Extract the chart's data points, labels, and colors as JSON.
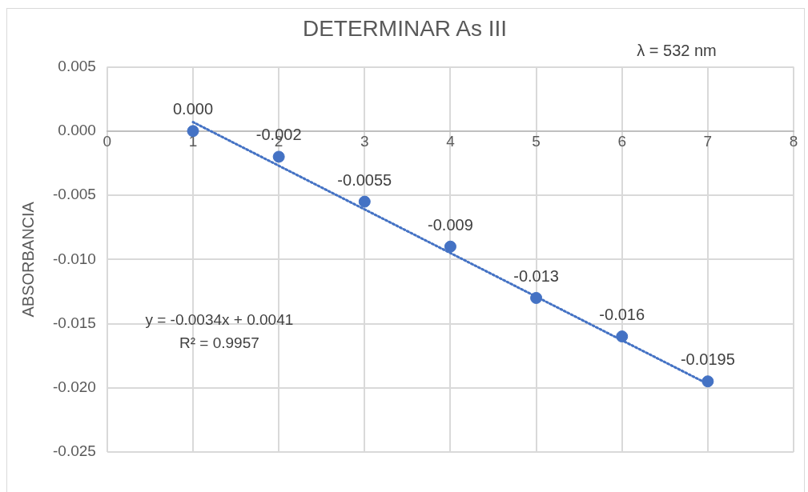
{
  "chart_data": {
    "type": "scatter",
    "title": "DETERMINAR As III",
    "ylabel": "ABSORBANCIA",
    "annotations": [
      "λ = 532 nm",
      "y = -0.0034x + 0.0041",
      "R² = 0.9957"
    ],
    "x": [
      1,
      2,
      3,
      4,
      5,
      6,
      7
    ],
    "series": [
      {
        "type": "scatter",
        "color": "#4472c4",
        "marker": "circle",
        "values": [
          0,
          -0.002,
          -0.0055,
          -0.009,
          -0.013,
          -0.016,
          -0.0195
        ],
        "value_labels": [
          "0.000",
          "-0.002",
          "-0.0055",
          "-0.009",
          "-0.013",
          "-0.016",
          "-0.0195"
        ]
      },
      {
        "type": "line",
        "color": "#4472c4",
        "marker": "none",
        "line_style": "dotted",
        "x": [
          1,
          7
        ],
        "values": [
          0.0007,
          -0.0197
        ]
      }
    ],
    "xlim": [
      0,
      8
    ],
    "xticks": [
      0,
      1,
      2,
      3,
      4,
      5,
      6,
      7,
      8
    ],
    "ylim": [
      -0.025,
      0.005
    ],
    "yticks": [
      {
        "value": 0.005,
        "label": "0.005"
      },
      {
        "value": 0,
        "label": "0.000"
      },
      {
        "value": -0.005,
        "label": "-0.005"
      },
      {
        "value": -0.01,
        "label": "-0.010"
      },
      {
        "value": -0.015,
        "label": "-0.015"
      },
      {
        "value": -0.02,
        "label": "-0.020"
      },
      {
        "value": -0.025,
        "label": "-0.025"
      }
    ],
    "grid": true,
    "legend": false
  }
}
